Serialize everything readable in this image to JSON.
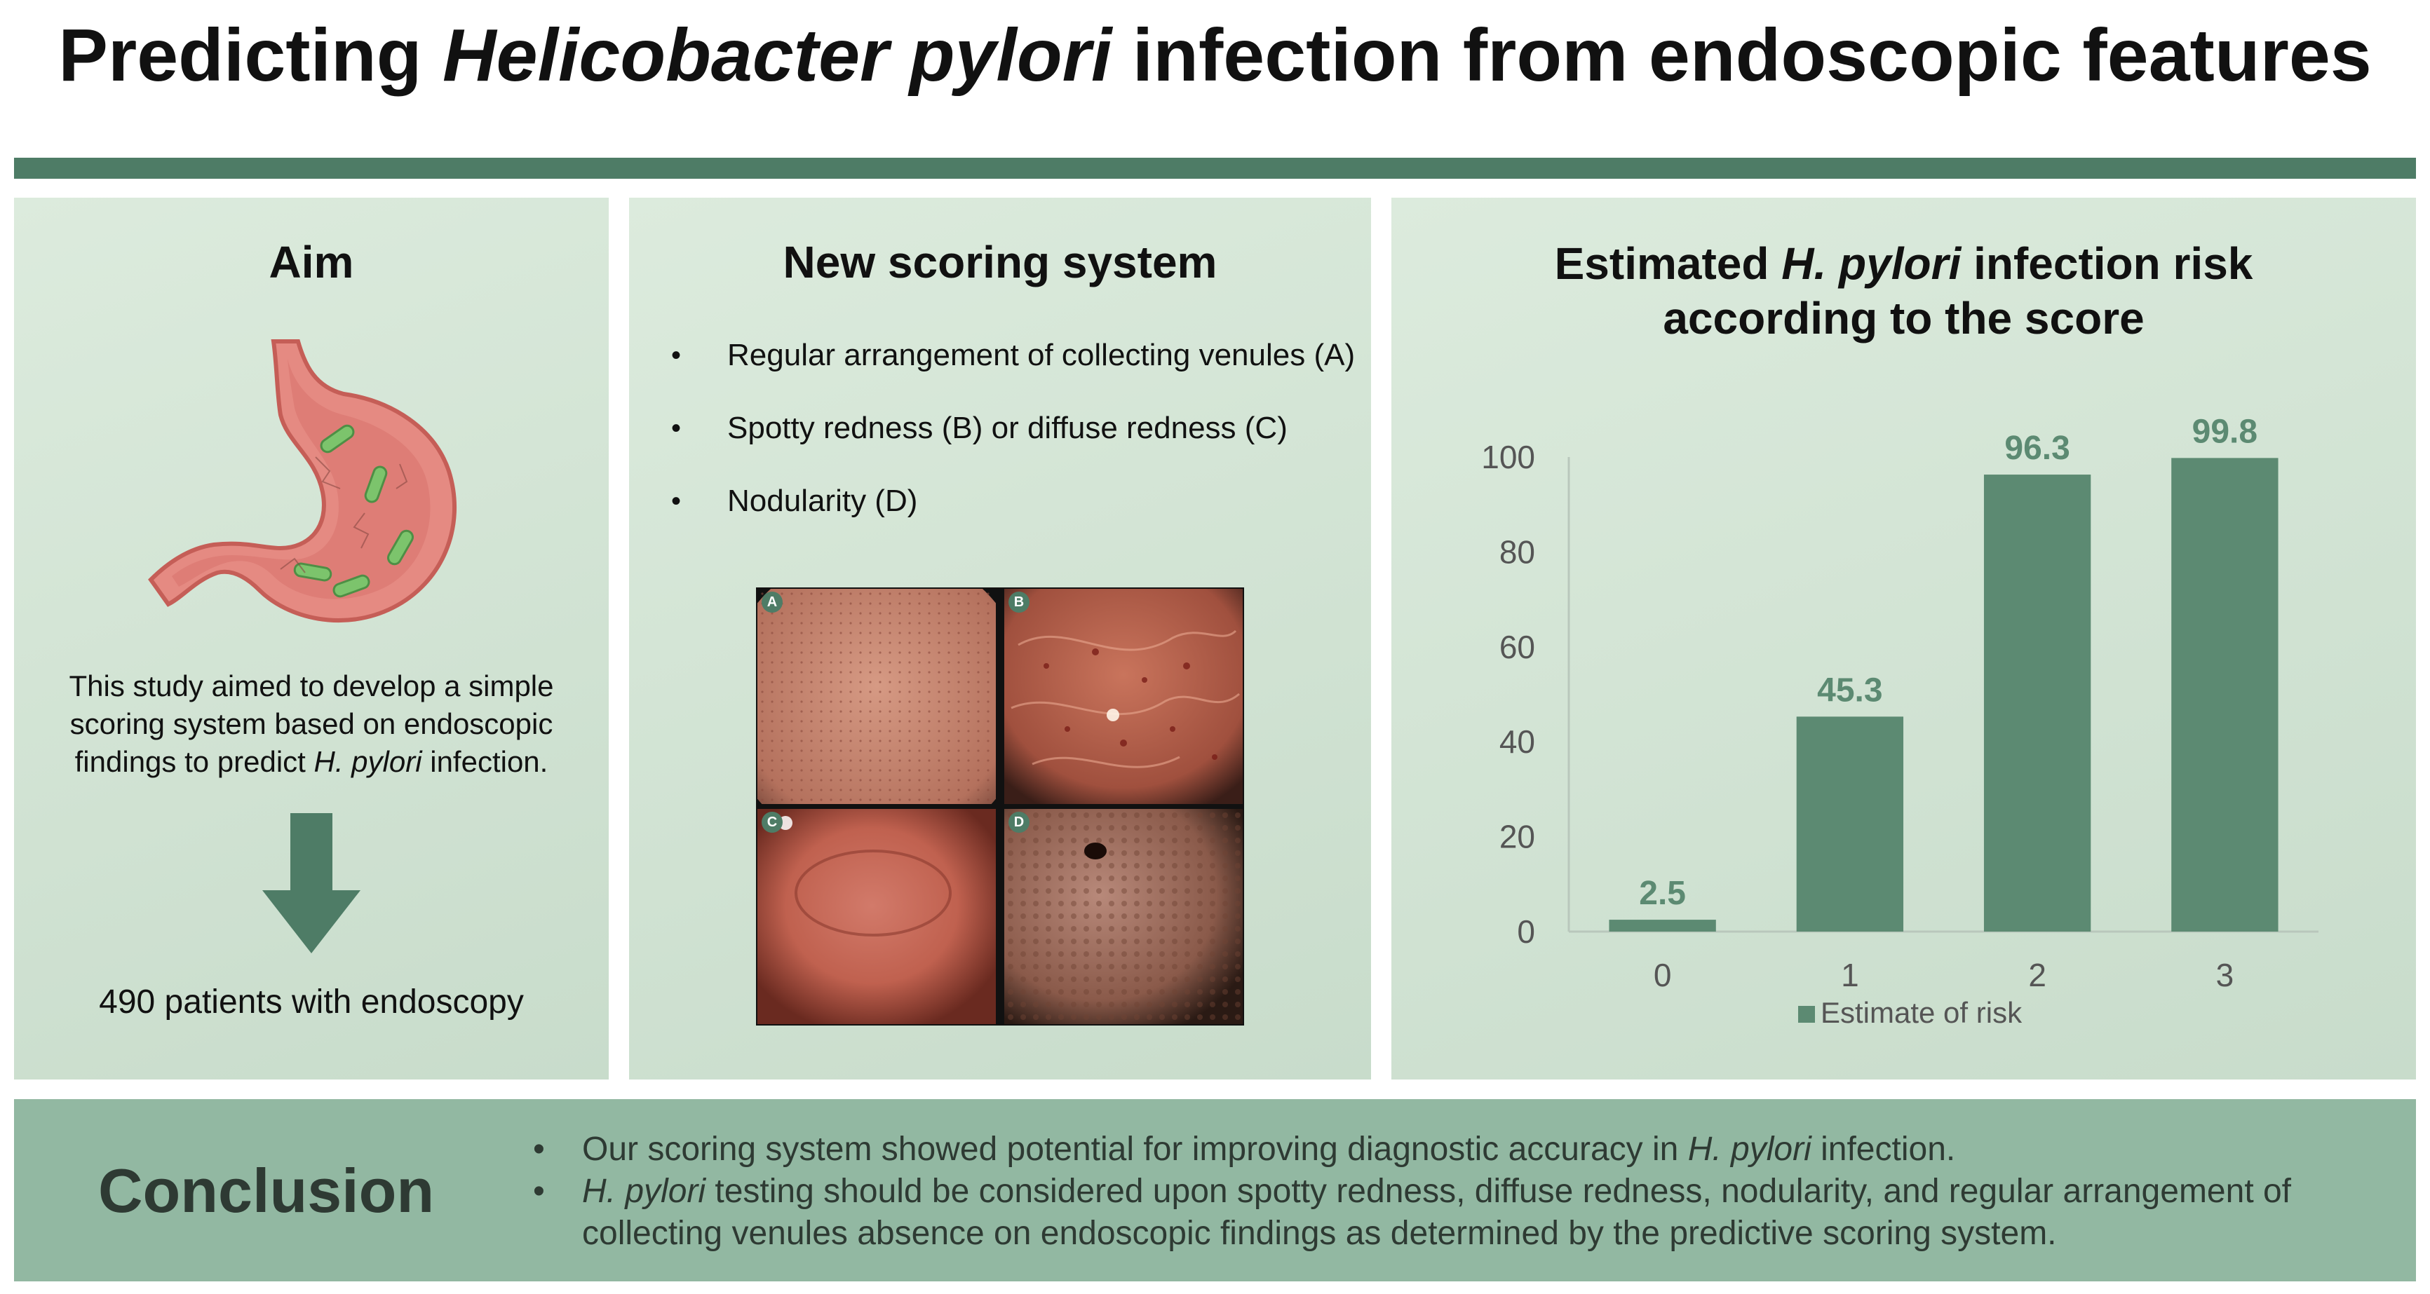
{
  "title": {
    "before": "Predicting ",
    "italic": "Helicobacter pylori",
    "after": " infection from endoscopic features"
  },
  "aim": {
    "heading": "Aim",
    "text_part1": "This study aimed to develop a simple scoring system based on endoscopic findings to predict ",
    "text_italic": "H. pylori",
    "text_part2": " infection.",
    "patients": "490 patients with endoscopy",
    "colors": {
      "stomach": "#e58a82",
      "bacteria": "#7cc46c",
      "arrow": "#4e7c66"
    }
  },
  "scoring": {
    "heading": "New scoring system",
    "bullets": [
      "Regular arrangement of collecting venules (A)",
      "Spotty redness (B) or diffuse redness (C)",
      "Nodularity (D)"
    ],
    "image_labels": [
      "A",
      "B",
      "C",
      "D"
    ]
  },
  "risk": {
    "heading_before": "Estimated ",
    "heading_italic": "H. pylori",
    "heading_after": " infection risk",
    "heading_line2": "according to the score"
  },
  "chart_data": {
    "type": "bar",
    "categories": [
      "0",
      "1",
      "2",
      "3"
    ],
    "series": [
      {
        "name": "Estimate of risk",
        "values": [
          2.5,
          45.3,
          96.3,
          99.8
        ]
      }
    ],
    "data_labels": [
      "2.5",
      "45.3",
      "96.3",
      "99.8"
    ],
    "y_ticks": [
      0,
      20,
      40,
      60,
      80,
      100
    ],
    "ylim": [
      0,
      100
    ],
    "grid": false,
    "legend_position": "bottom",
    "colors": {
      "bar": "#5c8a72",
      "label": "#5c8a72",
      "axis_text": "#555555"
    }
  },
  "conclusion": {
    "heading": "Conclusion",
    "b1_part1": "Our scoring system showed potential for improving diagnostic accuracy in ",
    "b1_italic": "H. pylori",
    "b1_part2": " infection.",
    "b2_italic": "H. pylori",
    "b2_part2": " testing should be considered upon spotty redness, diffuse redness, nodularity, and regular arrangement of collecting venules absence on endoscopic findings as determined by the predictive scoring system."
  }
}
